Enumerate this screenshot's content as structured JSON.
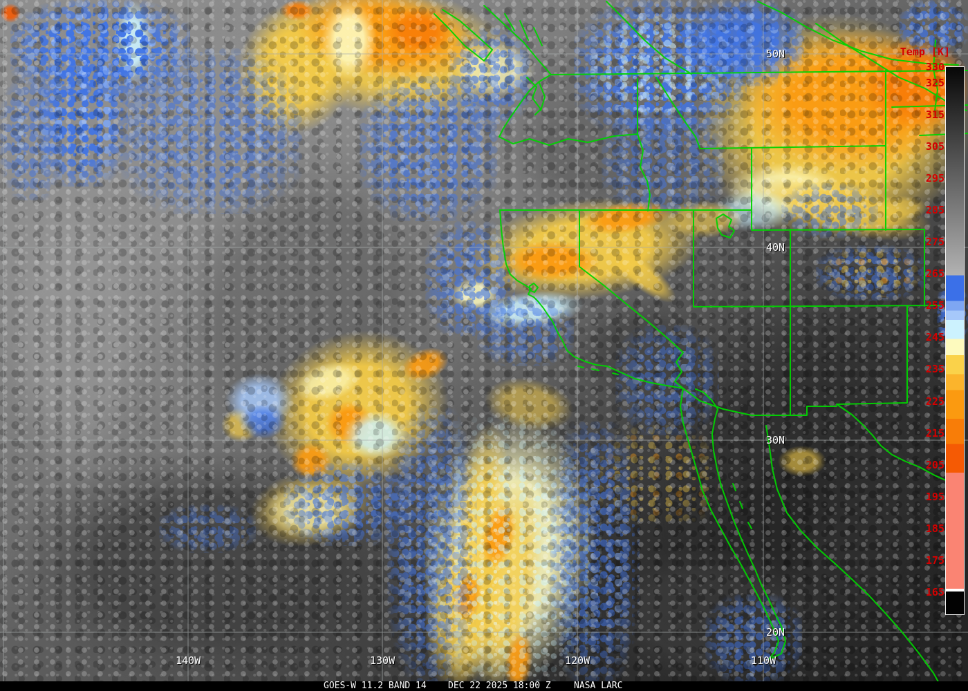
{
  "scale": {
    "title": "Temp [K]",
    "unit": "K",
    "labels": [
      "330",
      "325",
      "315",
      "305",
      "295",
      "285",
      "275",
      "265",
      "255",
      "245",
      "235",
      "225",
      "215",
      "205",
      "195",
      "185",
      "175",
      "165"
    ],
    "palette": [
      {
        "temp": 330,
        "color": "#070707"
      },
      {
        "temp": 264.5,
        "color": "#b2b2b2"
      },
      {
        "temp": 264.5,
        "color": "#3b70e8"
      },
      {
        "temp": 256.5,
        "color": "#3b70e8"
      },
      {
        "temp": 256.5,
        "color": "#7ea6f2"
      },
      {
        "temp": 253.5,
        "color": "#7ea6f2"
      },
      {
        "temp": 253.5,
        "color": "#a6c8fa"
      },
      {
        "temp": 250.5,
        "color": "#a6c8fa"
      },
      {
        "temp": 250.5,
        "color": "#ccf2fe"
      },
      {
        "temp": 244.5,
        "color": "#ccf2fe"
      },
      {
        "temp": 244.5,
        "color": "#fdfabe"
      },
      {
        "temp": 239.5,
        "color": "#fdfabe"
      },
      {
        "temp": 239.5,
        "color": "#fad24a"
      },
      {
        "temp": 233.5,
        "color": "#fad24a"
      },
      {
        "temp": 233.5,
        "color": "#fbb42c"
      },
      {
        "temp": 228.5,
        "color": "#fbb42c"
      },
      {
        "temp": 228.5,
        "color": "#fb9a10"
      },
      {
        "temp": 219.5,
        "color": "#fb9a10"
      },
      {
        "temp": 219.5,
        "color": "#f87d08"
      },
      {
        "temp": 211.5,
        "color": "#f87d08"
      },
      {
        "temp": 211.5,
        "color": "#f55a04"
      },
      {
        "temp": 202.5,
        "color": "#f55a04"
      },
      {
        "temp": 202.5,
        "color": "#fa8473"
      },
      {
        "temp": 166,
        "color": "#fa8473"
      },
      {
        "temp": 166,
        "color": "#ffffff"
      },
      {
        "temp": 165.2,
        "color": "#ffffff"
      },
      {
        "temp": 165.2,
        "color": "#020202"
      },
      {
        "temp": 158,
        "color": "#020202"
      }
    ]
  },
  "grid": {
    "lat": [
      {
        "label": "50N",
        "value": 50
      },
      {
        "label": "40N",
        "value": 40
      },
      {
        "label": "30N",
        "value": 30
      },
      {
        "label": "20N",
        "value": 20
      }
    ],
    "lon": [
      {
        "label": "140W",
        "value": 140
      },
      {
        "label": "130W",
        "value": 130
      },
      {
        "label": "120W",
        "value": 120
      },
      {
        "label": "110W",
        "value": 110
      }
    ]
  },
  "caption": {
    "product": "GOES-W 11.2 BAND 14",
    "datetime": "DEC 22 2025 18:00 Z",
    "credit": "NASA LARC"
  },
  "colors": {
    "border_green": "#00d400",
    "grid_gray": "#a8adad",
    "scale_text_red": "#d40000",
    "label_text": "#ffffff",
    "caption_bg": "#000000",
    "caption_text": "#ffffff",
    "cold_blue": "#3f74e8",
    "pale_cyan": "#ccf2fe",
    "cloud_gold": "#f3ca46",
    "cloud_orange": "#fb9a10",
    "cloud_salmon": "#fa8473"
  }
}
